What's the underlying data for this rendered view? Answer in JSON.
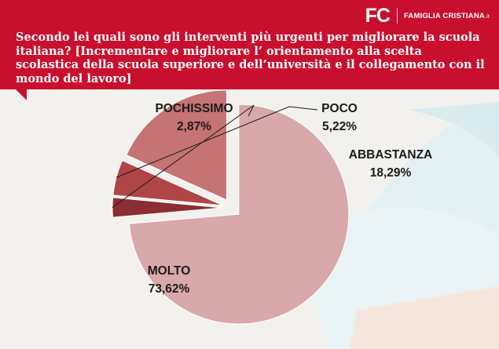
{
  "brand": {
    "logo_mark": "FC",
    "logo_name": "FAMIGLIA CRISTIANA",
    "logo_tld": ".it"
  },
  "question": "Secondo lei quali sono gli interventi più urgenti per migliorare la scuola italiana? [Incrementare e migliorare l’ orientamento alla scelta scolastica della scuola superiore e dell’università e il collegamento con il mondo del lavoro]",
  "colors": {
    "header": "#c8102e",
    "molto": "#d8a8aa",
    "abbastanza": "#c57375",
    "poco": "#b04547",
    "pochissimo": "#8c2d31"
  },
  "chart_data": {
    "type": "pie",
    "title": "",
    "slices": [
      {
        "label": "MOLTO",
        "value": 73.62,
        "display": "73,62%",
        "color": "#d8a8aa"
      },
      {
        "label": "POCHISSIMO",
        "value": 2.87,
        "display": "2,87%",
        "color": "#8c2d31"
      },
      {
        "label": "POCO",
        "value": 5.22,
        "display": "5,22%",
        "color": "#b04547"
      },
      {
        "label": "ABBASTANZA",
        "value": 18.29,
        "display": "18,29%",
        "color": "#c57375"
      }
    ]
  }
}
